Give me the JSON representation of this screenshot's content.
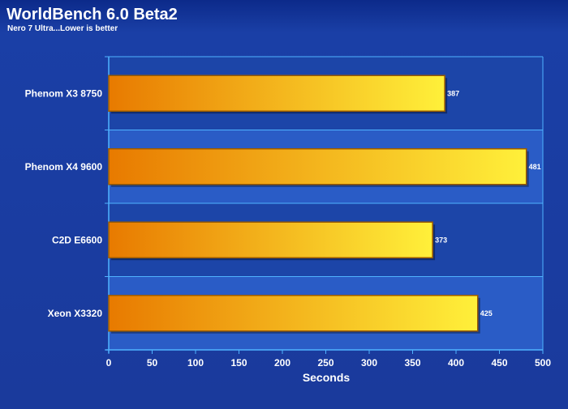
{
  "chart_data": {
    "type": "bar",
    "orientation": "horizontal",
    "title": "WorldBench 6.0 Beta2",
    "subtitle": "Nero 7 Ultra...Lower is better",
    "xlabel": "Seconds",
    "ylabel": "",
    "xlim": [
      0,
      500
    ],
    "xticks": [
      "0",
      "50",
      "100",
      "150",
      "200",
      "250",
      "300",
      "350",
      "400",
      "450",
      "500"
    ],
    "grid": false,
    "categories": [
      "Phenom X3 8750",
      "Phenom X4 9600",
      "C2D E6600",
      "Xeon X3320"
    ],
    "values": [
      387,
      481,
      373,
      425
    ],
    "data_labels": [
      "387",
      "481",
      "373",
      "425"
    ]
  },
  "colors": {
    "background": "#1a3a9c",
    "header_top": "#0f2f90",
    "plot_stripe_light": "#2a5cc6",
    "plot_stripe_dark": "#1c45a8",
    "bar_start": "#e87a00",
    "bar_end": "#fff03a",
    "bar_border": "#9a5a00",
    "text": "#ffffff",
    "axis_line": "#4fb3ff"
  }
}
